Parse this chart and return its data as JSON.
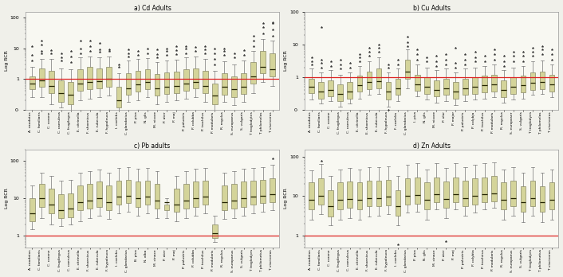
{
  "species_cd": [
    "A. caudatus",
    "C. familiaris",
    "C. corone",
    "C. caeruleus",
    "C. frugilegus",
    "E. citrinella",
    "F. shoenicus",
    "E. rubecula",
    "F. hypoleuca",
    "I. coelebs",
    "C. glandarius",
    "P. pica",
    "N. glis",
    "M. nivore",
    "P. ater",
    "P. maj",
    "P. palustris",
    "P. colubba",
    "P. trochilus",
    "P. modularis",
    "R. regulus",
    "S. europaeus",
    "S. vulgaris",
    "T. troglodytes",
    "T. philomelos",
    "T. viscivorus"
  ],
  "species_cu": [
    "A. caudatus",
    "C. familiaris",
    "C. corone",
    "C. frugilegus",
    "C. caeruleus",
    "E. citrinella",
    "E. shoenicus",
    "E. rubecula",
    "F. hypoleuca",
    "F. coelebs",
    "C. glandarius",
    "I. pica",
    "N. glis",
    "M. nivore",
    "P. olor",
    "P. major",
    "P. palustris",
    "P. colybja",
    "P. trochilus",
    "P. modularis",
    "R. regulus",
    "S. europaser",
    "S. vulgaris",
    "T. troglodyes",
    "T. philomelas",
    "T. viscivorus"
  ],
  "species_pb": [
    "A. caudatus",
    "C. familiaris",
    "C. corone",
    "C. frugilegus",
    "C. caeruleus",
    "E. citrinella",
    "F. shoenicus",
    "E. rubecula",
    "F. hypoleuca",
    "I. coelebs",
    "C. glandarius",
    "B. pica",
    "N. alba",
    "M. cinace",
    "P. ater",
    "P. maj",
    "P. palustris",
    "P. colubba",
    "P. trochilus",
    "P. modularis",
    "R. regulus",
    "S. europaeus",
    "S. vulgaris",
    "T. troglodyes",
    "T. philometus",
    "T. viscivorus"
  ],
  "species_zn": [
    "A. caudatus",
    "C. familiaris",
    "C. corone",
    "C. frugilegus",
    "C. caeruleus",
    "E. citrinella",
    "F. shoenicus",
    "E. rubecula",
    "F. hypoleuca",
    "I. coelebs",
    "C. glandarius",
    "P. pica",
    "N. glis",
    "M. cinace",
    "P. ater",
    "P. maj",
    "P. palustris",
    "P. colybta",
    "P. trochirus",
    "P. modularis",
    "R. regulus",
    "S. europaeus",
    "S. vulgaris",
    "T. troglodyes",
    "T. philometus",
    "T. viscivorus"
  ],
  "box_color": "#d4d49a",
  "box_edge_color": "#888866",
  "median_color": "#222200",
  "whisker_color": "#777777",
  "outlier_marker": "*",
  "outlier_color": "#333333",
  "ref_line_color": "#dd2222",
  "ref_line_value": 1.0,
  "titles": [
    "a) Cd Adults",
    "b) Cu Adults",
    "c) Pb adults",
    "d) Zn Adults"
  ],
  "ylabel": "Log RCR",
  "background_color": "#f0f0ea",
  "plot_bg_color": "#f8f8f2"
}
